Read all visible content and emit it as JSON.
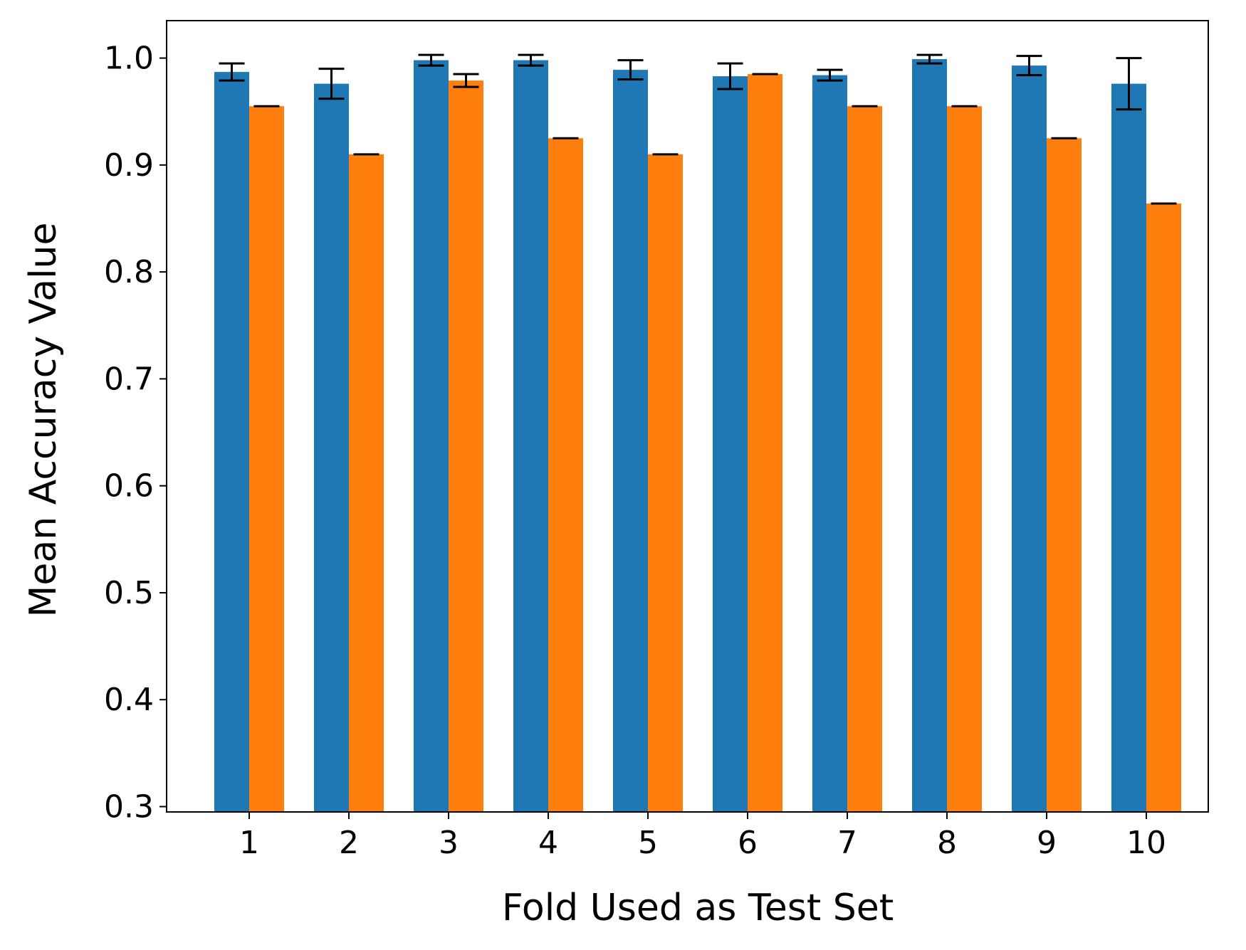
{
  "chart_data": {
    "type": "bar",
    "title": "",
    "xlabel": "Fold Used as Test Set",
    "ylabel": "Mean Accuracy Value",
    "categories": [
      "1",
      "2",
      "3",
      "4",
      "5",
      "6",
      "7",
      "8",
      "9",
      "10"
    ],
    "ylim": [
      0.295,
      1.035
    ],
    "yticks": [
      "0.3",
      "0.4",
      "0.5",
      "0.6",
      "0.7",
      "0.8",
      "0.9",
      "1.0"
    ],
    "ytick_values": [
      0.3,
      0.4,
      0.5,
      0.6,
      0.7,
      0.8,
      0.9,
      1.0
    ],
    "grid": false,
    "legend": "none",
    "series": [
      {
        "color": "#1f77b4",
        "values": [
          0.987,
          0.976,
          0.998,
          0.998,
          0.989,
          0.983,
          0.984,
          0.999,
          0.993,
          0.976
        ],
        "errors": [
          0.008,
          0.014,
          0.005,
          0.005,
          0.009,
          0.012,
          0.005,
          0.004,
          0.009,
          0.024
        ]
      },
      {
        "color": "#ff7f0e",
        "values": [
          0.955,
          0.91,
          0.979,
          0.925,
          0.91,
          0.985,
          0.955,
          0.955,
          0.925,
          0.864
        ],
        "errors": [
          0,
          0,
          0.006,
          0,
          0,
          0,
          0,
          0,
          0,
          0
        ]
      }
    ]
  }
}
